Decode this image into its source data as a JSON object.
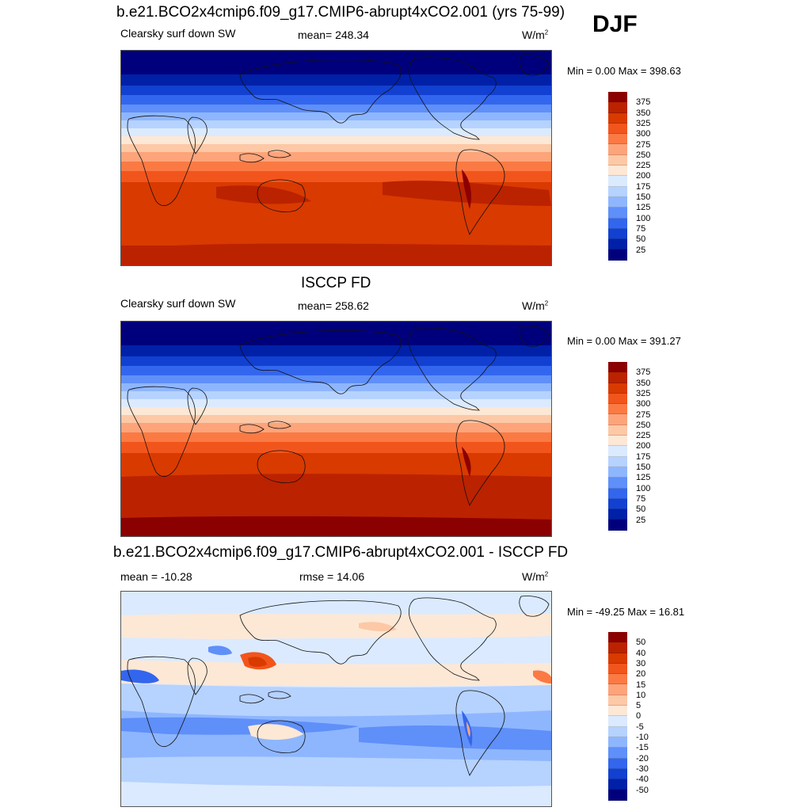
{
  "season": "DJF",
  "panels": [
    {
      "title": "b.e21.BCO2x4cmip6.f09_g17.CMIP6-abrupt4xCO2.001 (yrs 75-99)",
      "left_label": "Clearsky surf down SW",
      "center_label": "mean= 248.34",
      "units": "W/m",
      "units_sup": "2",
      "minmax": "Min =   0.00 Max = 398.63",
      "colorbar": {
        "labels": [
          "375",
          "350",
          "325",
          "300",
          "275",
          "250",
          "225",
          "200",
          "175",
          "150",
          "125",
          "100",
          "75",
          "50",
          "25"
        ],
        "colors": [
          "#8b0000",
          "#bb2200",
          "#d93a00",
          "#f2551c",
          "#fb7a44",
          "#fda47a",
          "#fdc8a6",
          "#fde8d6",
          "#dbeaff",
          "#b6d2ff",
          "#8eb6ff",
          "#5f8ff8",
          "#3366ee",
          "#1240d0",
          "#0020a8",
          "#00007c"
        ]
      }
    },
    {
      "title": "ISCCP FD",
      "left_label": "Clearsky surf down SW",
      "center_label": "mean= 258.62",
      "units": "W/m",
      "units_sup": "2",
      "minmax": "Min =   0.00 Max = 391.27",
      "colorbar": {
        "labels": [
          "375",
          "350",
          "325",
          "300",
          "275",
          "250",
          "225",
          "200",
          "175",
          "150",
          "125",
          "100",
          "75",
          "50",
          "25"
        ],
        "colors": [
          "#8b0000",
          "#bb2200",
          "#d93a00",
          "#f2551c",
          "#fb7a44",
          "#fda47a",
          "#fdc8a6",
          "#fde8d6",
          "#dbeaff",
          "#b6d2ff",
          "#8eb6ff",
          "#5f8ff8",
          "#3366ee",
          "#1240d0",
          "#0020a8",
          "#00007c"
        ]
      }
    },
    {
      "title": "b.e21.BCO2x4cmip6.f09_g17.CMIP6-abrupt4xCO2.001 - ISCCP FD",
      "left_label": "mean = -10.28",
      "center_label": "rmse =  14.06",
      "units": "W/m",
      "units_sup": "2",
      "minmax": "Min = -49.25 Max =  16.81",
      "colorbar": {
        "labels": [
          "50",
          "40",
          "30",
          "20",
          "15",
          "10",
          "5",
          "0",
          "-5",
          "-10",
          "-15",
          "-20",
          "-30",
          "-40",
          "-50"
        ],
        "colors": [
          "#8b0000",
          "#bb2200",
          "#d93a00",
          "#f2551c",
          "#fb7a44",
          "#fda47a",
          "#fdc8a6",
          "#fde8d6",
          "#dbeaff",
          "#b6d2ff",
          "#8eb6ff",
          "#5f8ff8",
          "#3366ee",
          "#1240d0",
          "#0020a8",
          "#00007c"
        ]
      }
    }
  ]
}
